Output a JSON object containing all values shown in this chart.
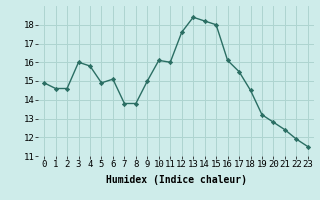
{
  "x": [
    0,
    1,
    2,
    3,
    4,
    5,
    6,
    7,
    8,
    9,
    10,
    11,
    12,
    13,
    14,
    15,
    16,
    17,
    18,
    19,
    20,
    21,
    22,
    23
  ],
  "y": [
    14.9,
    14.6,
    14.6,
    16.0,
    15.8,
    14.9,
    15.1,
    13.8,
    13.8,
    15.0,
    16.1,
    16.0,
    17.6,
    18.4,
    18.2,
    18.0,
    16.1,
    15.5,
    14.5,
    13.2,
    12.8,
    12.4,
    11.9,
    11.5
  ],
  "line_color": "#2a6e63",
  "marker": "D",
  "marker_size": 2.2,
  "bg_color": "#ceecea",
  "grid_color": "#aed4d0",
  "xlabel": "Humidex (Indice chaleur)",
  "ylim": [
    11,
    19
  ],
  "yticks": [
    11,
    12,
    13,
    14,
    15,
    16,
    17,
    18
  ],
  "xlim": [
    -0.5,
    23.5
  ],
  "xticks": [
    0,
    1,
    2,
    3,
    4,
    5,
    6,
    7,
    8,
    9,
    10,
    11,
    12,
    13,
    14,
    15,
    16,
    17,
    18,
    19,
    20,
    21,
    22,
    23
  ],
  "label_fontsize": 7,
  "tick_fontsize": 6.5
}
